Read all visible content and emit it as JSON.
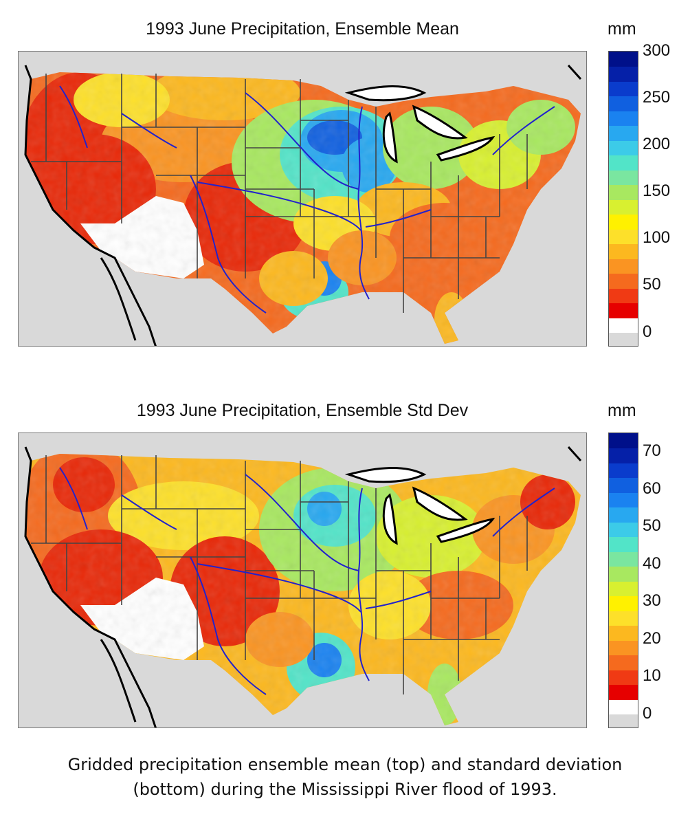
{
  "figure": {
    "caption_line1": "Gridded precipitation ensemble mean (top) and standard deviation",
    "caption_line2": "(bottom) during the Mississippi River flood of 1993."
  },
  "panels": [
    {
      "title": "1993 June Precipitation, Ensemble Mean",
      "colorbar_unit": "mm",
      "colorbar_ticks": [
        "300",
        "250",
        "200",
        "150",
        "100",
        "50",
        "0"
      ],
      "colorbar_min": 0,
      "colorbar_max": 300,
      "colorbar_colors": [
        "#d9d9d9",
        "#ffffff",
        "#e60000",
        "#f03a14",
        "#f56a1e",
        "#fa9422",
        "#fcb81f",
        "#fde02a",
        "#fff100",
        "#d8f030",
        "#a8e860",
        "#7ae6a0",
        "#52e4c8",
        "#3ccbe8",
        "#28a8f0",
        "#1a82f0",
        "#1060e0",
        "#0a3ccc",
        "#0520a8",
        "#00108a"
      ]
    },
    {
      "title": "1993 June Precipitation, Ensemble Std Dev",
      "colorbar_unit": "mm",
      "colorbar_ticks": [
        "70",
        "60",
        "50",
        "40",
        "30",
        "20",
        "10",
        "0"
      ],
      "colorbar_min": 0,
      "colorbar_max": 75,
      "colorbar_colors": [
        "#d9d9d9",
        "#ffffff",
        "#e60000",
        "#f03a14",
        "#f56a1e",
        "#fa9422",
        "#fcb81f",
        "#fde02a",
        "#fff100",
        "#d8f030",
        "#a8e860",
        "#7ae6a0",
        "#52e4c8",
        "#3ccbe8",
        "#28a8f0",
        "#1a82f0",
        "#1060e0",
        "#0a3ccc",
        "#0520a8",
        "#00108a"
      ]
    }
  ],
  "colors": {
    "no_data": "#d9d9d9",
    "rivers": "#2222cc",
    "boundaries": "#444444",
    "coastline": "#000000",
    "lakes": "#ffffff"
  }
}
